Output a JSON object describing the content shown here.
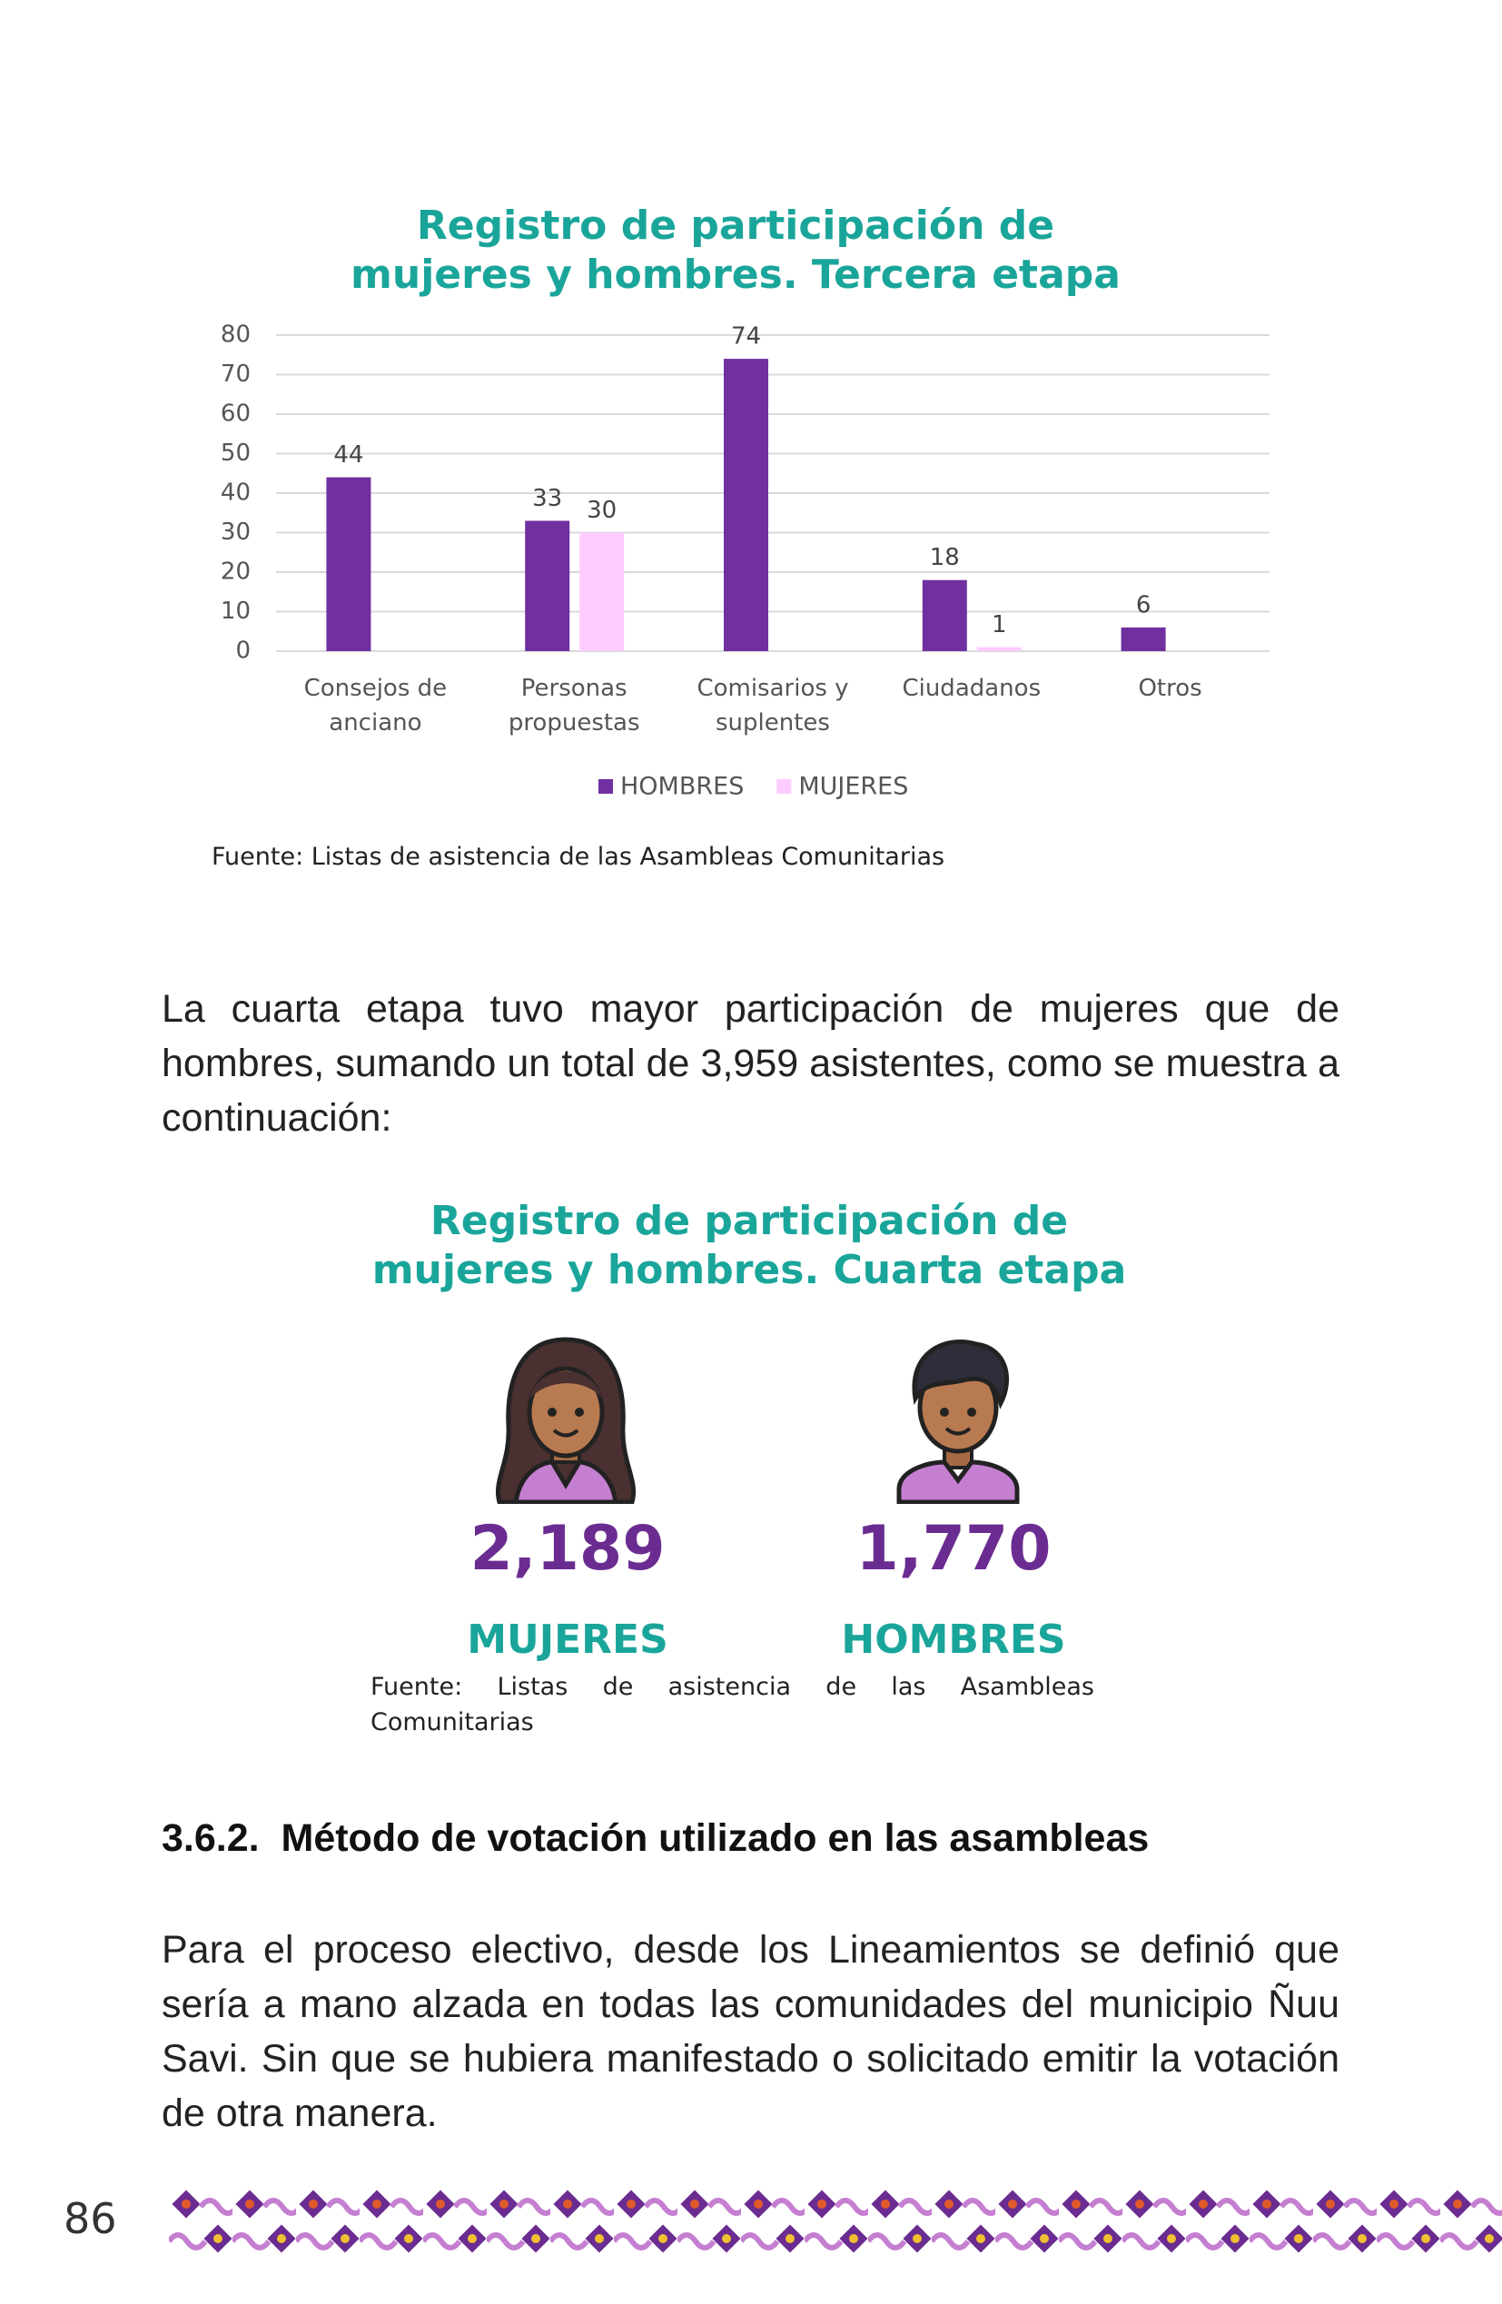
{
  "chart_data": {
    "type": "bar",
    "title": "Registro de participación de mujeres y hombres. Tercera etapa",
    "categories": [
      "Consejos de anciano",
      "Personas propuestas",
      "Comisarios y suplentes",
      "Ciudadanos",
      "Otros"
    ],
    "series": [
      {
        "name": "HOMBRES",
        "color": "#7030a0",
        "values": [
          44,
          33,
          74,
          18,
          6
        ]
      },
      {
        "name": "MUJERES",
        "color": "#ffccff",
        "values": [
          null,
          30,
          null,
          1,
          null
        ]
      }
    ],
    "ylim": [
      0,
      80
    ],
    "yticks": [
      0,
      10,
      20,
      30,
      40,
      50,
      60,
      70,
      80
    ],
    "grid": true,
    "legend": "bottom",
    "source": "Fuente: Listas de asistencia de las Asambleas Comunitarias"
  },
  "paragraph1": "La cuarta etapa tuvo mayor participación de mujeres que de hombres, sumando un total de 3,959 asistentes, como se muestra a continuación:",
  "infographic": {
    "title": "Registro de participación de mujeres y hombres. Cuarta etapa",
    "items": [
      {
        "value": "2,189",
        "label": "MUJERES"
      },
      {
        "value": "1,770",
        "label": "HOMBRES"
      }
    ],
    "source": "Fuente: Listas de asistencia de las Asambleas Comunitarias"
  },
  "section": {
    "number": "3.6.2.",
    "title": "Método de votación utilizado en las asambleas"
  },
  "paragraph2": "Para el proceso electivo, desde los Lineamientos se definió que sería a mano alzada en todas las comunidades del municipio Ñuu Savi. Sin que se hubiera manifestado o solicitado emitir la votación de otra manera.",
  "page_number": "86"
}
